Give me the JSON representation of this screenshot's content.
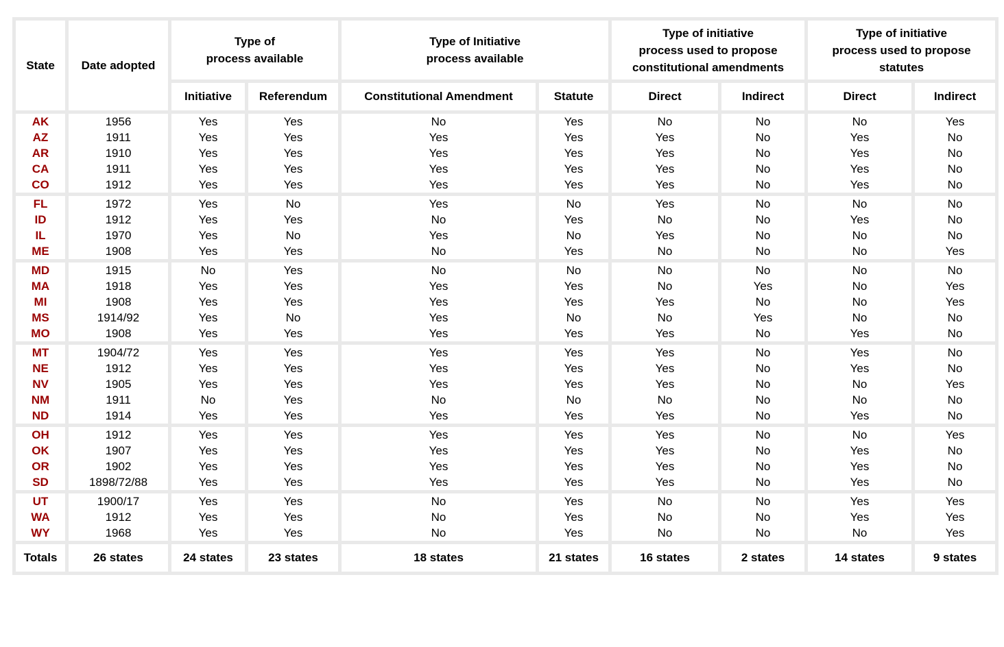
{
  "colors": {
    "state_text": "#990000",
    "grid": "#e9e9e9",
    "cell_background": "#ffffff",
    "text": "#000000"
  },
  "table": {
    "header": {
      "state": "State",
      "date_adopted": "Date adopted",
      "groups": [
        {
          "label": "Type of\nprocess available",
          "cols": [
            "Initiative",
            "Referendum"
          ]
        },
        {
          "label": "Type of Initiative\nprocess available",
          "cols": [
            "Constitutional Amendment",
            "Statute"
          ]
        },
        {
          "label": "Type of initiative\nprocess used to propose\nconstitutional amendments",
          "cols": [
            "Direct",
            "Indirect"
          ]
        },
        {
          "label": "Type of initiative\nprocess used to propose\nstatutes",
          "cols": [
            "Direct",
            "Indirect"
          ]
        }
      ]
    },
    "columns": [
      "state",
      "date_adopted",
      "initiative",
      "referendum",
      "constitutional_amendment",
      "statute",
      "amendment_direct",
      "amendment_indirect",
      "statute_direct",
      "statute_indirect"
    ],
    "groups": [
      {
        "rows": [
          [
            "AK",
            "1956",
            "Yes",
            "Yes",
            "No",
            "Yes",
            "No",
            "No",
            "No",
            "Yes"
          ],
          [
            "AZ",
            "1911",
            "Yes",
            "Yes",
            "Yes",
            "Yes",
            "Yes",
            "No",
            "Yes",
            "No"
          ],
          [
            "AR",
            "1910",
            "Yes",
            "Yes",
            "Yes",
            "Yes",
            "Yes",
            "No",
            "Yes",
            "No"
          ],
          [
            "CA",
            "1911",
            "Yes",
            "Yes",
            "Yes",
            "Yes",
            "Yes",
            "No",
            "Yes",
            "No"
          ],
          [
            "CO",
            "1912",
            "Yes",
            "Yes",
            "Yes",
            "Yes",
            "Yes",
            "No",
            "Yes",
            "No"
          ]
        ]
      },
      {
        "rows": [
          [
            "FL",
            "1972",
            "Yes",
            "No",
            "Yes",
            "No",
            "Yes",
            "No",
            "No",
            "No"
          ],
          [
            "ID",
            "1912",
            "Yes",
            "Yes",
            "No",
            "Yes",
            "No",
            "No",
            "Yes",
            "No"
          ],
          [
            "IL",
            "1970",
            "Yes",
            "No",
            "Yes",
            "No",
            "Yes",
            "No",
            "No",
            "No"
          ],
          [
            "ME",
            "1908",
            "Yes",
            "Yes",
            "No",
            "Yes",
            "No",
            "No",
            "No",
            "Yes"
          ]
        ]
      },
      {
        "rows": [
          [
            "MD",
            "1915",
            "No",
            "Yes",
            "No",
            "No",
            "No",
            "No",
            "No",
            "No"
          ],
          [
            "MA",
            "1918",
            "Yes",
            "Yes",
            "Yes",
            "Yes",
            "No",
            "Yes",
            "No",
            "Yes"
          ],
          [
            "MI",
            "1908",
            "Yes",
            "Yes",
            "Yes",
            "Yes",
            "Yes",
            "No",
            "No",
            "Yes"
          ],
          [
            "MS",
            "1914/92",
            "Yes",
            "No",
            "Yes",
            "No",
            "No",
            "Yes",
            "No",
            "No"
          ],
          [
            "MO",
            "1908",
            "Yes",
            "Yes",
            "Yes",
            "Yes",
            "Yes",
            "No",
            "Yes",
            "No"
          ]
        ]
      },
      {
        "rows": [
          [
            "MT",
            "1904/72",
            "Yes",
            "Yes",
            "Yes",
            "Yes",
            "Yes",
            "No",
            "Yes",
            "No"
          ],
          [
            "NE",
            "1912",
            "Yes",
            "Yes",
            "Yes",
            "Yes",
            "Yes",
            "No",
            "Yes",
            "No"
          ],
          [
            "NV",
            "1905",
            "Yes",
            "Yes",
            "Yes",
            "Yes",
            "Yes",
            "No",
            "No",
            "Yes"
          ],
          [
            "NM",
            "1911",
            "No",
            "Yes",
            "No",
            "No",
            "No",
            "No",
            "No",
            "No"
          ],
          [
            "ND",
            "1914",
            "Yes",
            "Yes",
            "Yes",
            "Yes",
            "Yes",
            "No",
            "Yes",
            "No"
          ]
        ]
      },
      {
        "rows": [
          [
            "OH",
            "1912",
            "Yes",
            "Yes",
            "Yes",
            "Yes",
            "Yes",
            "No",
            "No",
            "Yes"
          ],
          [
            "OK",
            "1907",
            "Yes",
            "Yes",
            "Yes",
            "Yes",
            "Yes",
            "No",
            "Yes",
            "No"
          ],
          [
            "OR",
            "1902",
            "Yes",
            "Yes",
            "Yes",
            "Yes",
            "Yes",
            "No",
            "Yes",
            "No"
          ],
          [
            "SD",
            "1898/72/88",
            "Yes",
            "Yes",
            "Yes",
            "Yes",
            "Yes",
            "No",
            "Yes",
            "No"
          ]
        ]
      },
      {
        "rows": [
          [
            "UT",
            "1900/17",
            "Yes",
            "Yes",
            "No",
            "Yes",
            "No",
            "No",
            "Yes",
            "Yes"
          ],
          [
            "WA",
            "1912",
            "Yes",
            "Yes",
            "No",
            "Yes",
            "No",
            "No",
            "Yes",
            "Yes"
          ],
          [
            "WY",
            "1968",
            "Yes",
            "Yes",
            "No",
            "Yes",
            "No",
            "No",
            "No",
            "Yes"
          ]
        ]
      }
    ],
    "totals": [
      "Totals",
      "26 states",
      "24 states",
      "23 states",
      "18 states",
      "21 states",
      "16 states",
      "2 states",
      "14 states",
      "9 states"
    ]
  }
}
